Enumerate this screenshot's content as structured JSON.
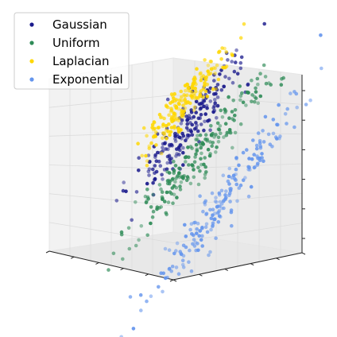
{
  "chart_data": {
    "type": "scatter3d",
    "title": "",
    "xlabel": "",
    "ylabel": "",
    "zlabel": "",
    "grid": true,
    "legend_placement": "upper-left",
    "axis_ticks_shown": false,
    "series": [
      {
        "name": "Gaussian",
        "color": "#1a1a8c",
        "center": [
          0.0,
          0.5,
          0.45
        ],
        "spread": [
          0.35,
          0.1,
          0.1
        ],
        "trend_z_per_x": 0.45,
        "approx_points": 200
      },
      {
        "name": "Uniform",
        "color": "#2e8b57",
        "center": [
          0.1,
          0.55,
          0.2
        ],
        "spread": [
          0.45,
          0.1,
          0.08
        ],
        "trend_z_per_x": 0.45,
        "approx_points": 200
      },
      {
        "name": "Laplacian",
        "color": "#ffd700",
        "center": [
          0.05,
          0.35,
          0.62
        ],
        "spread": [
          0.3,
          0.08,
          0.07
        ],
        "trend_z_per_x": 0.45,
        "approx_points": 200
      },
      {
        "name": "Exponential",
        "color": "#6495ed",
        "center": [
          0.35,
          0.75,
          -0.15
        ],
        "spread": [
          0.5,
          0.08,
          0.1
        ],
        "trend_z_per_x": 0.55,
        "approx_points": 200
      }
    ]
  }
}
